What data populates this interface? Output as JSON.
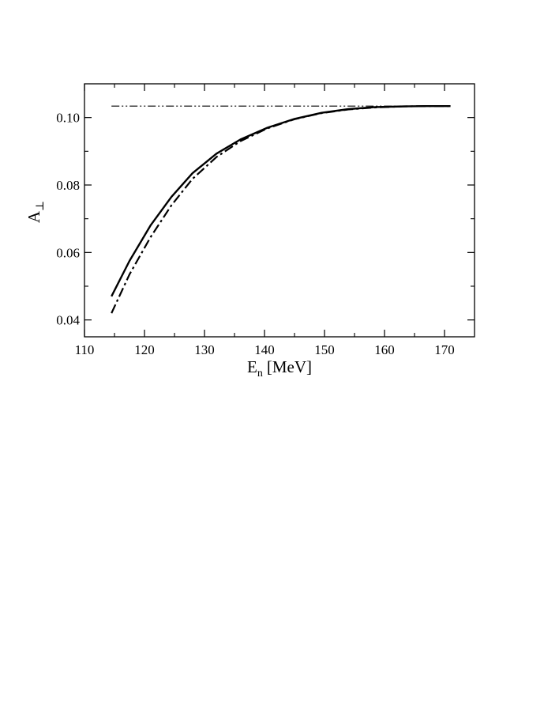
{
  "chart_data": {
    "type": "line",
    "title": "",
    "xlabel": {
      "main": "E",
      "sub": "n",
      "unit": "[MeV]"
    },
    "ylabel": {
      "main": "A",
      "sub": "⊥"
    },
    "xlim": [
      110,
      175
    ],
    "ylim": [
      0.035,
      0.11
    ],
    "x_ticks": [
      110,
      120,
      130,
      140,
      150,
      160,
      170
    ],
    "x_tick_labels": [
      "110",
      "120",
      "130",
      "140",
      "150",
      "160",
      "170"
    ],
    "y_ticks": [
      0.04,
      0.06,
      0.08,
      0.1
    ],
    "y_tick_labels": [
      "0.04",
      "0.06",
      "0.08",
      "0.10"
    ],
    "grid": false,
    "legend": "none",
    "series": [
      {
        "style": "solid",
        "color": "#000000",
        "x": [
          114.5,
          117.5,
          121,
          124.5,
          128,
          132,
          136,
          140.5,
          145,
          149.5,
          154,
          158.5,
          163,
          167,
          171
        ],
        "y": [
          0.047,
          0.0575,
          0.068,
          0.0765,
          0.0835,
          0.0893,
          0.0935,
          0.097,
          0.0996,
          0.1014,
          0.1025,
          0.1031,
          0.1033,
          0.1034,
          0.1034
        ]
      },
      {
        "style": "dash-dot",
        "color": "#000000",
        "x": [
          114.5,
          117.5,
          121,
          124.5,
          128,
          132,
          136,
          140.5,
          145,
          149.5,
          154,
          158.5,
          163,
          167,
          171
        ],
        "y": [
          0.042,
          0.0535,
          0.0645,
          0.074,
          0.0818,
          0.0883,
          0.093,
          0.0968,
          0.0995,
          0.1013,
          0.1024,
          0.103,
          0.1033,
          0.1034,
          0.1034
        ]
      },
      {
        "style": "dash-dot-dot",
        "color": "#000000",
        "x": [
          114.5,
          171
        ],
        "y": [
          0.1034,
          0.1034
        ]
      }
    ]
  }
}
